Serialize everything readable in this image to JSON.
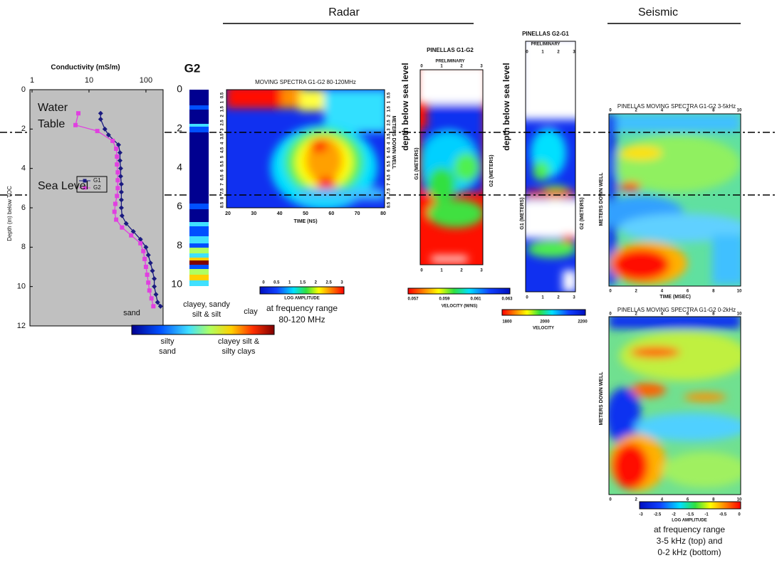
{
  "chart_data": [
    {
      "type": "line",
      "title": "Conductivity (mS/m)",
      "y_label": "Depth (m) below TOC",
      "xscale": "log",
      "xlim": [
        1,
        200
      ],
      "xticks": [
        1,
        10,
        100
      ],
      "ylim": [
        0,
        12
      ],
      "yticks": [
        0,
        2,
        4,
        6,
        8,
        10,
        12
      ],
      "y_reversed": true,
      "background": "#c0c0c0",
      "legend": "left",
      "annotations": [
        "Water",
        "Table",
        "Sea Level"
      ],
      "series": [
        {
          "name": "G1",
          "color": "#1a1a80",
          "marker": "diamond",
          "x": [
            16,
            16,
            19,
            22,
            33,
            35,
            35,
            36,
            36,
            37,
            37,
            37,
            37,
            38,
            45,
            60,
            80,
            100,
            110,
            120,
            130,
            140,
            140,
            150,
            160,
            180
          ],
          "values": [
            1.2,
            1.5,
            2.0,
            2.3,
            2.8,
            3.2,
            3.6,
            4.0,
            4.4,
            4.8,
            5.2,
            5.6,
            6.0,
            6.4,
            6.8,
            7.2,
            7.6,
            8.0,
            8.4,
            8.8,
            9.2,
            9.6,
            10.0,
            10.4,
            10.8,
            11.0
          ]
        },
        {
          "name": "G2",
          "color": "#e040e0",
          "marker": "square",
          "x": [
            6.5,
            5.8,
            14,
            26,
            30,
            31,
            31,
            32,
            32,
            32,
            31,
            29,
            28,
            30,
            38,
            55,
            80,
            90,
            95,
            100,
            105,
            110,
            115,
            125,
            135
          ],
          "values": [
            1.2,
            1.8,
            2.1,
            2.6,
            3.0,
            3.4,
            3.8,
            4.2,
            4.6,
            5.0,
            5.4,
            5.8,
            6.2,
            6.6,
            7.0,
            7.4,
            7.8,
            8.2,
            8.6,
            9.0,
            9.4,
            9.8,
            10.2,
            10.6,
            11.0
          ]
        }
      ]
    }
  ],
  "figure": {
    "radar_heading": "Radar",
    "seismic_heading": "Seismic",
    "lithology": {
      "title": "G2",
      "ticks": [
        "0",
        "2",
        "4",
        "6",
        "8",
        "10"
      ],
      "legend_top": [
        "sand",
        "clayey, sandy",
        "silt & silt",
        "clay"
      ],
      "legend_bottom": [
        "silty",
        "sand",
        "clayey silt &",
        "silty clays"
      ]
    },
    "radar": {
      "title": "MOVING SPECTRA G1-G2  80-120MHz",
      "xticks": [
        "20",
        "30",
        "40",
        "50",
        "60",
        "70",
        "80"
      ],
      "xlabel": "TIME (NS)",
      "yticks": [
        "0.5",
        "1",
        "1.5",
        "2",
        "2.5",
        "3",
        "3.5",
        "4",
        "4.5",
        "5",
        "5.5",
        "6",
        "6.5",
        "7",
        "7.5",
        "8",
        "8.5"
      ],
      "ylabel": "METERS DOWN WELL",
      "colorbar_ticks": [
        "0",
        "0.5",
        "1",
        "1.5",
        "2",
        "2.5",
        "3"
      ],
      "colorbar_label": "LOG AMPLITUDE",
      "caption": [
        "at frequency range",
        "80-120 MHz"
      ]
    },
    "tomo1": {
      "title": "PINELLAS G1-G2",
      "subtitle": "PRELIMINARY",
      "side_label": "depth below sea level",
      "ylabel": "G1 (METERS)",
      "y2label": "G2 (METERS)",
      "xticks": [
        "0",
        "1",
        "2",
        "3"
      ],
      "colorbar_ticks": [
        "0.057",
        "0.059",
        "0.061",
        "0.063"
      ],
      "colorbar_label": "VELOCITY (M/NS)"
    },
    "tomo2": {
      "title": "PINELLAS G2-G1",
      "subtitle": "PRELIMINARY",
      "side_label": "depth below sea level",
      "ylabel": "G1 (METERS)",
      "y2label": "G2 (METERS)",
      "xticks": [
        "0",
        "1",
        "2",
        "3"
      ],
      "colorbar_ticks": [
        "1800",
        "2000",
        "2200"
      ],
      "colorbar_label": "VELOCITY"
    },
    "seis_top": {
      "title": "PINELLAS MOVING SPECTRA G1-G2  3-5kHz",
      "xticks": [
        "0",
        "2",
        "4",
        "6",
        "8",
        "10"
      ],
      "xlabel": "TIME (MSEC)",
      "ylabel": "METERS DOWN WELL"
    },
    "seis_bottom": {
      "title": "PINELLAS MOVING SPECTRA G1-G2  0-2kHz",
      "xticks": [
        "0",
        "2",
        "4",
        "6",
        "8",
        "10"
      ],
      "xlabel": "TIME (MSEC)",
      "ylabel": "METERS DOWN WELL",
      "colorbar_ticks": [
        "-3",
        "-2.5",
        "-2",
        "-1.5",
        "-1",
        "-0.5",
        "0"
      ],
      "colorbar_label": "LOG AMPLITUDE",
      "caption": [
        "at frequency range",
        "3-5 kHz (top) and",
        "0-2 kHz (bottom)"
      ]
    }
  }
}
